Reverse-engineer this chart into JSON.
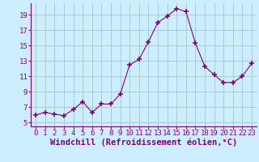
{
  "x": [
    0,
    1,
    2,
    3,
    4,
    5,
    6,
    7,
    8,
    9,
    10,
    11,
    12,
    13,
    14,
    15,
    16,
    17,
    18,
    19,
    20,
    21,
    22,
    23
  ],
  "y": [
    6.0,
    6.3,
    6.1,
    5.9,
    6.7,
    7.7,
    6.3,
    7.4,
    7.4,
    8.7,
    12.5,
    13.2,
    15.5,
    18.0,
    18.8,
    19.8,
    19.4,
    15.3,
    12.3,
    11.2,
    10.2,
    10.2,
    11.0,
    12.7
  ],
  "line_color": "#800080",
  "marker": "+",
  "marker_size": 5,
  "marker_lw": 1.2,
  "bg_color": "#cceeff",
  "grid_color": "#aacccc",
  "xlabel": "Windchill (Refroidissement éolien,°C)",
  "xlim": [
    -0.5,
    23.5
  ],
  "ylim": [
    4.5,
    20.5
  ],
  "yticks": [
    5,
    7,
    9,
    11,
    13,
    15,
    17,
    19
  ],
  "xticks": [
    0,
    1,
    2,
    3,
    4,
    5,
    6,
    7,
    8,
    9,
    10,
    11,
    12,
    13,
    14,
    15,
    16,
    17,
    18,
    19,
    20,
    21,
    22,
    23
  ],
  "tick_fontsize": 6.5,
  "xlabel_fontsize": 7.5,
  "label_color": "#800080"
}
